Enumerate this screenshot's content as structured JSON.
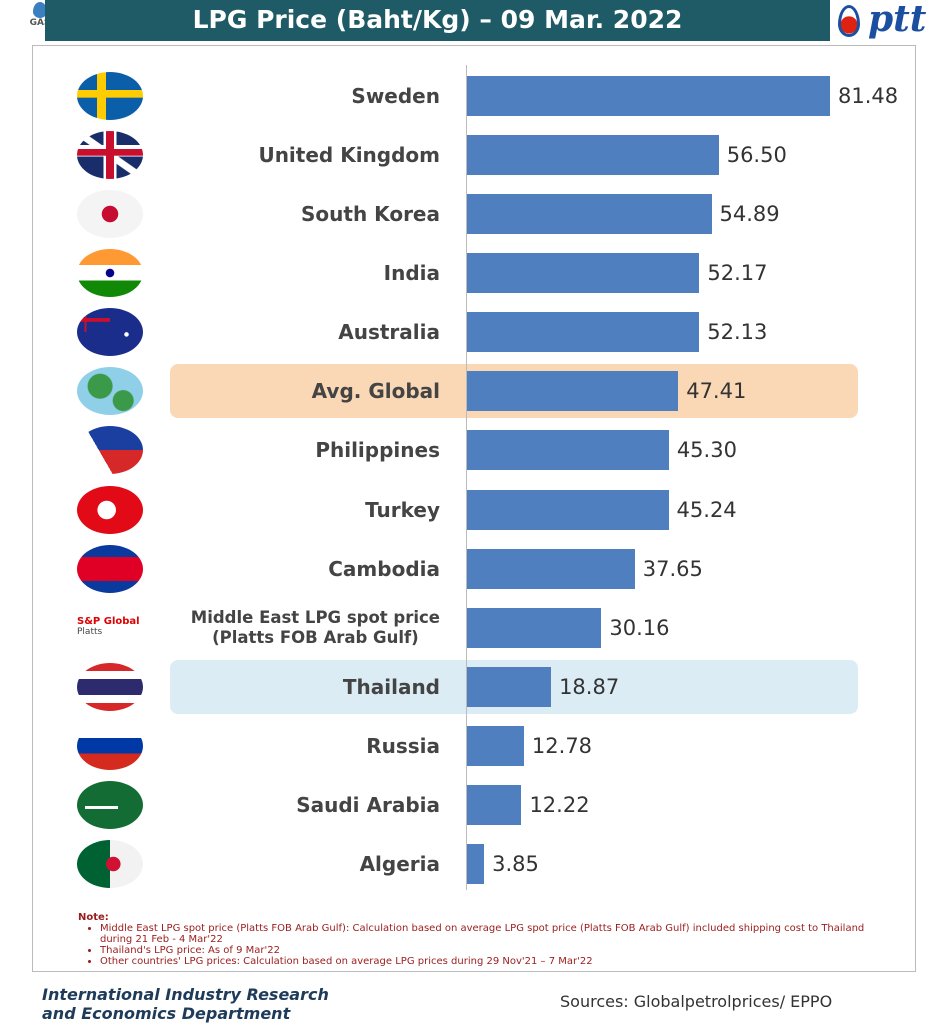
{
  "header": {
    "title": "LPG Price (Baht/Kg) – 09 Mar. 2022",
    "left_logo": "GAS INDUSTRY",
    "right_logo": "ptt"
  },
  "chart_data": {
    "type": "bar",
    "orientation": "horizontal",
    "title": "LPG Price (Baht/Kg) – 09 Mar. 2022",
    "ylabel": "",
    "xlabel": "",
    "xlim": [
      0,
      81.48
    ],
    "categories": [
      "Sweden",
      "United Kingdom",
      "South Korea",
      "India",
      "Australia",
      "Avg. Global",
      "Philippines",
      "Turkey",
      "Cambodia",
      "Middle East LPG spot price (Platts FOB Arab Gulf)",
      "Thailand",
      "Russia",
      "Saudi Arabia",
      "Algeria"
    ],
    "label_lines": [
      [
        "Sweden"
      ],
      [
        "United Kingdom"
      ],
      [
        "South Korea"
      ],
      [
        "India"
      ],
      [
        "Australia"
      ],
      [
        "Avg. Global"
      ],
      [
        "Philippines"
      ],
      [
        "Turkey"
      ],
      [
        "Cambodia"
      ],
      [
        "Middle East LPG spot price",
        "(Platts FOB Arab Gulf)"
      ],
      [
        "Thailand"
      ],
      [
        "Russia"
      ],
      [
        "Saudi Arabia"
      ],
      [
        "Algeria"
      ]
    ],
    "values": [
      81.48,
      56.5,
      54.89,
      52.17,
      52.13,
      47.41,
      45.3,
      45.24,
      37.65,
      30.16,
      18.87,
      12.78,
      12.22,
      3.85
    ],
    "value_labels": [
      "81.48",
      "56.50",
      "54.89",
      "52.17",
      "52.13",
      "47.41",
      "45.30",
      "45.24",
      "37.65",
      "30.16",
      "18.87",
      "12.78",
      "12.22",
      "3.85"
    ],
    "highlights": {
      "Avg. Global": "#fad7b5",
      "Thailand": "#dcecf5"
    },
    "bar_color": "#4f7fbf",
    "platts_logo": [
      "S&P Global",
      "Platts"
    ]
  },
  "notes": {
    "title": "Note:",
    "items": [
      "Middle East LPG spot price (Platts FOB Arab Gulf): Calculation based on average LPG spot price (Platts FOB Arab Gulf) included shipping cost to Thailand during 21 Feb - 4 Mar'22",
      "Thailand's LPG price: As of 9 Mar'22",
      "Other countries' LPG prices: Calculation based on average LPG prices during 29 Nov'21 – 7 Mar'22"
    ]
  },
  "footer": {
    "department_line1": "International Industry Research",
    "department_line2": "and Economics Department",
    "sources": "Sources: Globalpetrolprices/ EPPO"
  }
}
